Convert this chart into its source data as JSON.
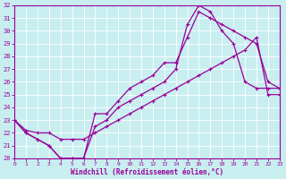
{
  "xlabel": "Windchill (Refroidissement éolien,°C)",
  "bg_color": "#c8eef0",
  "line_color": "#990099",
  "grid_color": "#ffffff",
  "xmin": 0,
  "xmax": 23,
  "ymin": 20,
  "ymax": 32,
  "xticks": [
    0,
    1,
    2,
    3,
    4,
    5,
    6,
    7,
    8,
    9,
    10,
    11,
    12,
    13,
    14,
    15,
    16,
    17,
    18,
    19,
    20,
    21,
    22,
    23
  ],
  "yticks": [
    20,
    21,
    22,
    23,
    24,
    25,
    26,
    27,
    28,
    29,
    30,
    31,
    32
  ],
  "line1_x": [
    0,
    1,
    2,
    3,
    4,
    5,
    6,
    7,
    8,
    9,
    10,
    11,
    12,
    13,
    14,
    15,
    16,
    17,
    18,
    19,
    20,
    21,
    22,
    23
  ],
  "line1_y": [
    23.0,
    22.0,
    21.5,
    21.0,
    20.0,
    20.0,
    20.0,
    22.5,
    23.0,
    24.0,
    24.5,
    25.0,
    25.5,
    26.0,
    27.0,
    30.5,
    32.0,
    31.5,
    30.0,
    29.0,
    26.0,
    25.5,
    25.5,
    25.5
  ],
  "line2_x": [
    0,
    1,
    2,
    3,
    4,
    5,
    6,
    7,
    8,
    9,
    10,
    11,
    12,
    13,
    14,
    15,
    16,
    17,
    18,
    19,
    20,
    21,
    22,
    23
  ],
  "line2_y": [
    23.0,
    22.0,
    21.5,
    21.0,
    20.0,
    20.0,
    20.0,
    23.5,
    23.5,
    24.5,
    25.5,
    26.0,
    26.5,
    27.5,
    27.5,
    29.5,
    31.5,
    31.0,
    30.5,
    30.0,
    29.5,
    29.0,
    26.0,
    25.5
  ],
  "line3_x": [
    0,
    1,
    2,
    3,
    4,
    5,
    6,
    7,
    8,
    9,
    10,
    11,
    12,
    13,
    14,
    15,
    16,
    17,
    18,
    19,
    20,
    21,
    22,
    23
  ],
  "line3_y": [
    23.0,
    22.2,
    22.0,
    22.0,
    21.5,
    21.5,
    21.5,
    22.0,
    22.5,
    23.0,
    23.5,
    24.0,
    24.5,
    25.0,
    25.5,
    26.0,
    26.5,
    27.0,
    27.5,
    28.0,
    28.5,
    29.5,
    25.0,
    25.0
  ]
}
